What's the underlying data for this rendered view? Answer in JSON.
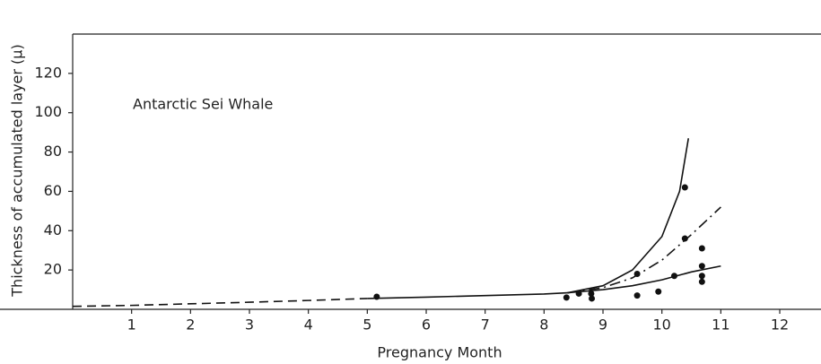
{
  "chart_data": {
    "type": "scatter-curves",
    "annotation": "Antarctic Sei Whale",
    "x_label": "Pregnancy Month",
    "y_label": "Thickness of accumulated layer (μ)",
    "xlim": [
      0,
      12.7
    ],
    "ylim": [
      0,
      140
    ],
    "xticks": [
      1,
      2,
      3,
      4,
      5,
      6,
      7,
      8,
      9,
      10,
      11,
      12
    ],
    "yticks": [
      20,
      40,
      60,
      80,
      100,
      120
    ],
    "grid": false,
    "points": {
      "color": "#111",
      "x": [
        5.16,
        8.38,
        8.59,
        8.8,
        8.81,
        9.58,
        9.58,
        9.94,
        10.21,
        10.39,
        10.39,
        10.68,
        10.68,
        10.68,
        10.68
      ],
      "values": [
        6.4,
        6,
        8,
        8,
        5.5,
        7,
        18,
        9,
        17,
        36,
        62,
        31,
        22,
        17,
        14
      ]
    },
    "series": [
      {
        "color": "#111",
        "style": "dashed",
        "x": [
          0,
          1,
          2,
          3,
          4,
          5
        ],
        "values": [
          1.5,
          2,
          2.8,
          3.6,
          4.5,
          5.5
        ]
      },
      {
        "color": "#111",
        "style": "solid",
        "x": [
          5,
          6,
          7,
          8,
          8.4
        ],
        "values": [
          5.5,
          6.2,
          7,
          7.8,
          8.4
        ]
      },
      {
        "color": "#111",
        "style": "solid",
        "x": [
          8.4,
          9,
          9.5,
          10,
          10.3,
          10.45
        ],
        "values": [
          8.4,
          12,
          20,
          37,
          60,
          87
        ]
      },
      {
        "color": "#111",
        "style": "dashdot",
        "x": [
          8.4,
          9,
          9.5,
          10,
          10.5,
          11
        ],
        "values": [
          8.4,
          11,
          16,
          25,
          38,
          52
        ]
      },
      {
        "color": "#111",
        "style": "solid",
        "x": [
          8.4,
          9,
          9.5,
          10,
          10.5,
          11
        ],
        "values": [
          8.4,
          10,
          12,
          15,
          19,
          22
        ]
      }
    ]
  }
}
